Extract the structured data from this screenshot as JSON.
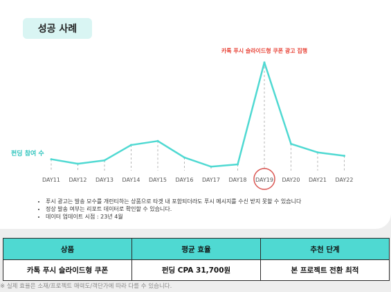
{
  "section_title": "성공 사례",
  "chart_data": {
    "type": "line",
    "categories": [
      "DAY11",
      "DAY12",
      "DAY13",
      "DAY14",
      "DAY15",
      "DAY16",
      "DAY17",
      "DAY18",
      "DAY19",
      "DAY20",
      "DAY21",
      "DAY22"
    ],
    "values": [
      20,
      12,
      18,
      45,
      52,
      23,
      7,
      11,
      190,
      47,
      32,
      26
    ],
    "ylabel": "펀딩 참여 수",
    "peak_annotation": "카톡 푸시 슬라이드형 쿠폰 광고 집행",
    "highlight_category": "DAY19",
    "colors": {
      "line": "#4fd9d2",
      "annotation": "#e8463a",
      "ylabel": "#2ec4bd",
      "highlight_circle": "#d9534f"
    }
  },
  "notes": [
    "푸시 광고는 발송 모수를 개런티하는 상품으로 타겟 내 포함되더라도 푸시 메시지를 수신 받지 못할 수 있습니다",
    "정상 발송 여부는 리포트 데이터로 확인할 수 있습니다.",
    "데이터 업데이트 시점 : 23년 4월"
  ],
  "table": {
    "headers": [
      "상품",
      "평균 효율",
      "추천 단계"
    ],
    "row": [
      "카톡 푸시 슬라이드형 쿠폰",
      "펀딩 CPA 31,700원",
      "본 프로젝트 전환 최적"
    ]
  },
  "footnote": "※ 실제 효율은 소재/프로젝트 매력도/객단가에 따라 다를 수 있습니다."
}
